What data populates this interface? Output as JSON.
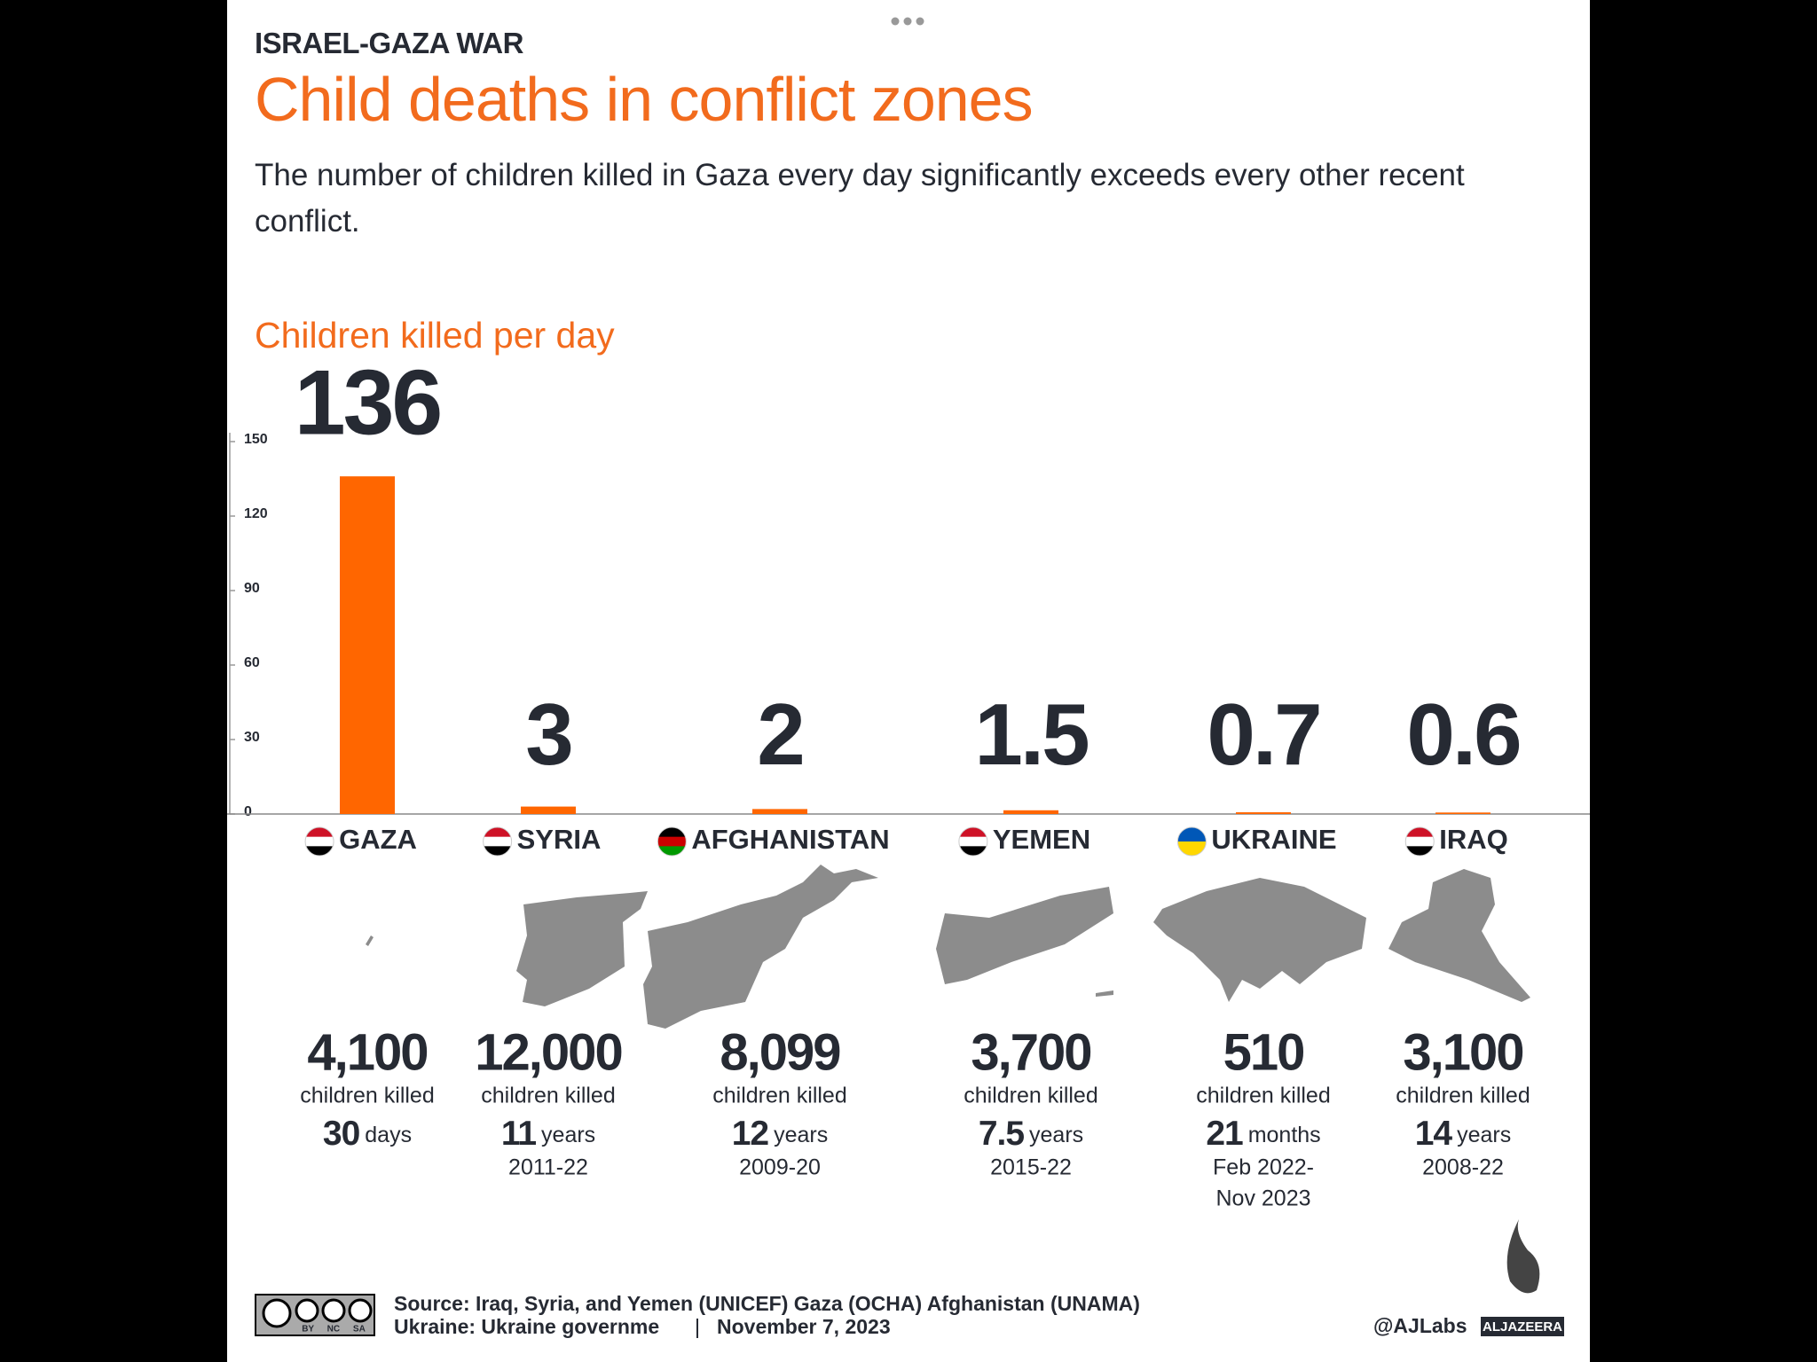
{
  "header": {
    "kicker": "ISRAEL-GAZA WAR",
    "title": "Child deaths in conflict zones",
    "subtitle": "The number of children killed in Gaza every day significantly exceeds every other recent conflict."
  },
  "chart_data": {
    "type": "bar",
    "title": "Children killed per day",
    "categories": [
      "GAZA",
      "SYRIA",
      "AFGHANISTAN",
      "YEMEN",
      "UKRAINE",
      "IRAQ"
    ],
    "values": [
      136,
      3,
      2,
      1.5,
      0.7,
      0.6
    ],
    "color": "#ff6600",
    "ylim": [
      0,
      150
    ],
    "yticks": [
      0,
      30,
      60,
      90,
      120,
      150
    ]
  },
  "details": [
    {
      "total": "4,100",
      "caption": "children killed",
      "duration": "30",
      "unit": "days",
      "period": []
    },
    {
      "total": "12,000",
      "caption": "children killed",
      "duration": "11",
      "unit": "years",
      "period": [
        "2011-22"
      ]
    },
    {
      "total": "8,099",
      "caption": "children killed",
      "duration": "12",
      "unit": "years",
      "period": [
        "2009-20"
      ]
    },
    {
      "total": "3,700",
      "caption": "children killed",
      "duration": "7.5",
      "unit": "years",
      "period": [
        "2015-22"
      ]
    },
    {
      "total": "510",
      "caption": "children killed",
      "duration": "21",
      "unit": "months",
      "period": [
        "Feb 2022-",
        "Nov 2023"
      ]
    },
    {
      "total": "3,100",
      "caption": "children killed",
      "duration": "14",
      "unit": "years",
      "period": [
        "2008-22"
      ]
    }
  ],
  "footer": {
    "source": [
      "Source: Iraq, Syria, and Yemen (UNICEF) Gaza (OCHA) Afghanistan (UNAMA)",
      "Ukraine: Ukraine governme"
    ],
    "date": "November 7, 2023",
    "license": "BY NC SA",
    "handle": "@AJLabs",
    "brand": "ALJAZEERA"
  }
}
